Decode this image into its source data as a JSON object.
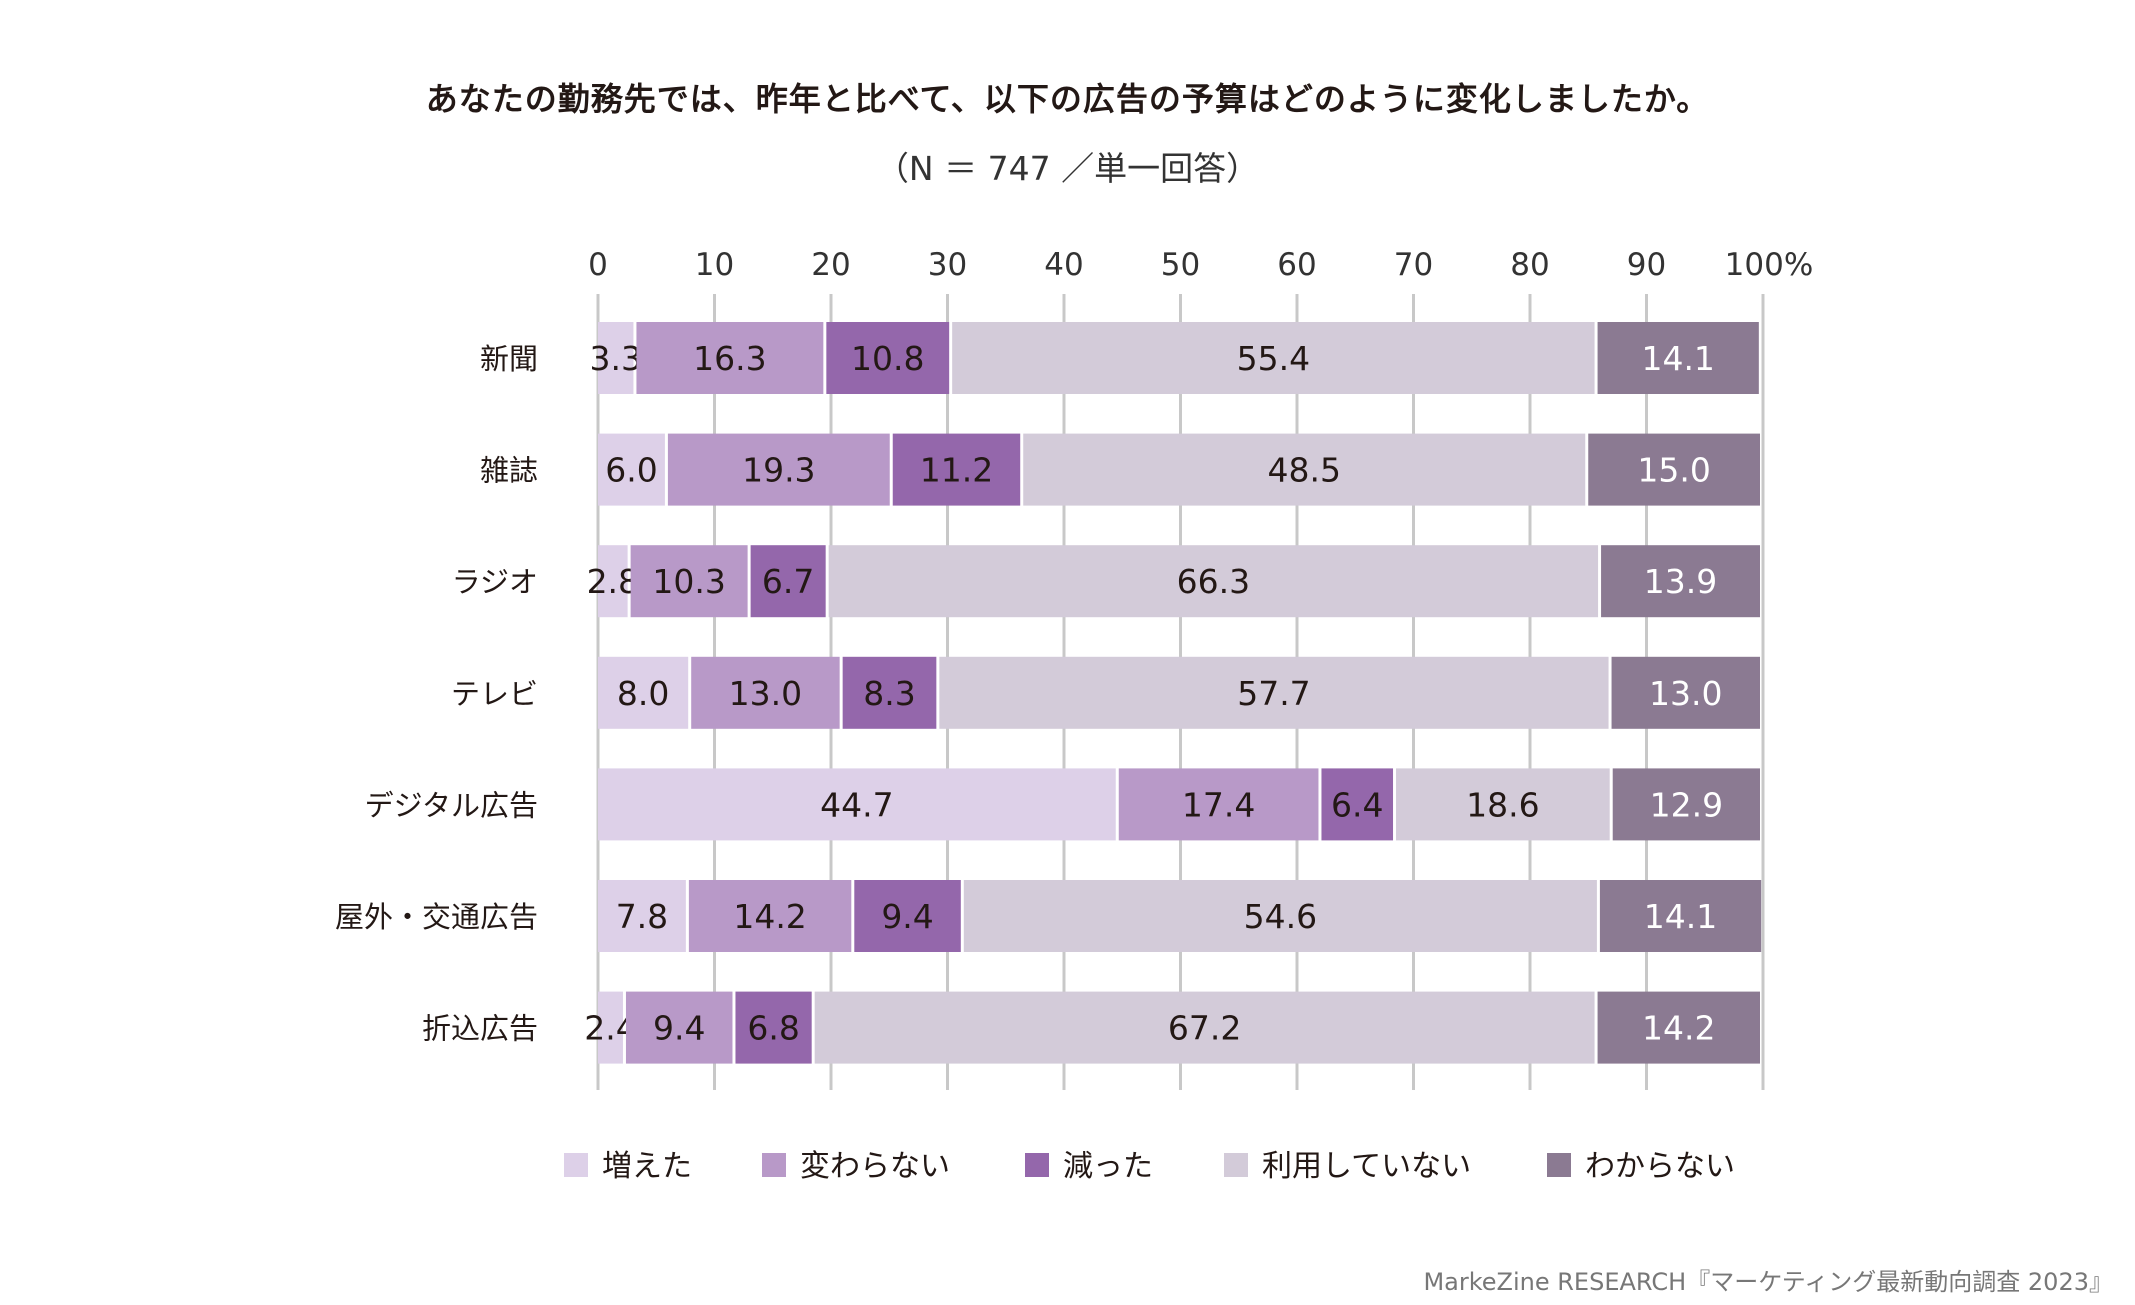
{
  "chart_data": {
    "type": "bar",
    "orientation": "horizontal",
    "stacked": true,
    "title": "あなたの勤務先では、昨年と比べて、以下の広告の予算はどのように変化しましたか。",
    "subtitle": "（N ＝ 747 ／単一回答）",
    "categories": [
      "新聞",
      "雑誌",
      "ラジオ",
      "テレビ",
      "デジタル広告",
      "屋外・交通広告",
      "折込広告"
    ],
    "series": [
      {
        "name": "増えた",
        "color": "#ddd0e8",
        "values": [
          3.3,
          6.0,
          2.8,
          8.0,
          44.7,
          7.8,
          2.4
        ]
      },
      {
        "name": "変わらない",
        "color": "#b899c8",
        "values": [
          16.3,
          19.3,
          10.3,
          13.0,
          17.4,
          14.2,
          9.4
        ]
      },
      {
        "name": "減った",
        "color": "#9467ab",
        "values": [
          10.8,
          11.2,
          6.7,
          8.3,
          6.4,
          9.4,
          6.8
        ]
      },
      {
        "name": "利用していない",
        "color": "#d3cbd9",
        "values": [
          55.4,
          48.5,
          66.3,
          57.7,
          18.6,
          54.6,
          67.2
        ]
      },
      {
        "name": "わからない",
        "color": "#8b7a92",
        "values": [
          14.1,
          15.0,
          13.9,
          13.0,
          12.9,
          14.1,
          14.2
        ]
      }
    ],
    "xlim": [
      0,
      100
    ],
    "xticks": [
      "0",
      "10",
      "20",
      "30",
      "40",
      "50",
      "60",
      "70",
      "80",
      "90",
      "100%"
    ],
    "grid": true,
    "legend": "bottom",
    "data_labels": true
  },
  "source": "MarkeZine RESEARCH『マーケティング最新動向調査 2023』"
}
